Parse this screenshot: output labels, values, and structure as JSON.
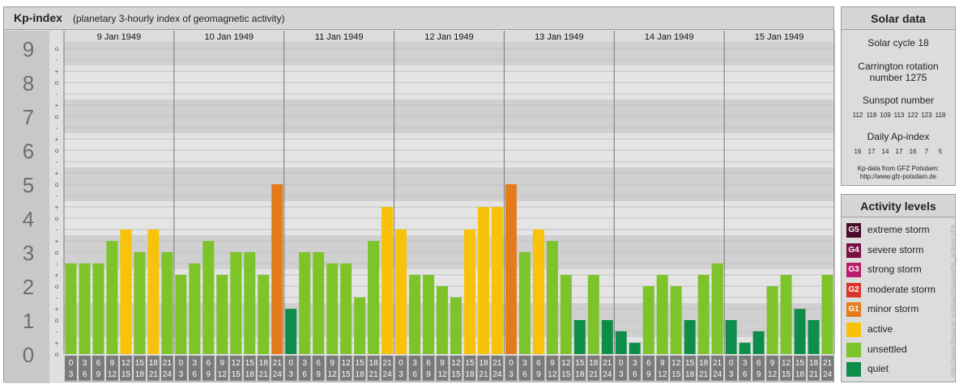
{
  "header": {
    "title": "Kp-index",
    "subtitle": "(planetary 3-hourly index of geomagnetic activity)"
  },
  "chart_data": {
    "type": "bar",
    "y_levels": [
      "0",
      "1",
      "2",
      "3",
      "4",
      "5",
      "6",
      "7",
      "8",
      "9"
    ],
    "subticks": [
      "-",
      "o",
      "+"
    ],
    "ylim": [
      0,
      9.33
    ],
    "days": [
      "9 Jan 1949",
      "10 Jan 1949",
      "11 Jan 1949",
      "12 Jan 1949",
      "13 Jan 1949",
      "14 Jan 1949",
      "15 Jan 1949"
    ],
    "interval_starts": [
      "0",
      "3",
      "6",
      "9",
      "12",
      "15",
      "18",
      "21"
    ],
    "interval_ends": [
      "3",
      "6",
      "9",
      "12",
      "15",
      "18",
      "21",
      "24"
    ],
    "values": [
      [
        2.67,
        2.67,
        2.67,
        3.33,
        3.67,
        3.0,
        3.67,
        3.0
      ],
      [
        2.33,
        2.67,
        3.33,
        2.33,
        3.0,
        3.0,
        2.33,
        5.0
      ],
      [
        1.33,
        3.0,
        3.0,
        2.67,
        2.67,
        1.67,
        3.33,
        4.33
      ],
      [
        3.67,
        2.33,
        2.33,
        2.0,
        1.67,
        3.67,
        4.33,
        4.33
      ],
      [
        5.0,
        3.0,
        3.67,
        3.33,
        2.33,
        1.0,
        2.33,
        1.0
      ],
      [
        0.67,
        0.33,
        2.0,
        2.33,
        2.0,
        1.0,
        2.33,
        2.67
      ],
      [
        1.0,
        0.33,
        0.67,
        2.0,
        2.33,
        1.33,
        1.0,
        2.33
      ]
    ],
    "bar_colors": {
      "quiet": "#0e8c4a",
      "unsettled": "#7cc42a",
      "active": "#f8c20a",
      "minor_storm": "#e37b1b"
    }
  },
  "solar": {
    "title": "Solar data",
    "cycle": "Solar cycle 18",
    "carrington_1": "Carrington rotation",
    "carrington_2": "number 1275",
    "sunspot_title": "Sunspot number",
    "sunspots": [
      "112",
      "118",
      "109",
      "113",
      "122",
      "123",
      "118"
    ],
    "ap_title": "Daily Ap-index",
    "ap": [
      "16",
      "17",
      "14",
      "17",
      "16",
      "7",
      "5"
    ],
    "source_1": "Kp-data from GFZ Potsdam:",
    "source_2": "http://www.gfz-potsdam.de"
  },
  "activity": {
    "title": "Activity levels",
    "items": [
      {
        "code": "G5",
        "label": "extreme storm",
        "color": "#4a0a2a"
      },
      {
        "code": "G4",
        "label": "severe storm",
        "color": "#7a0f45"
      },
      {
        "code": "G3",
        "label": "strong storm",
        "color": "#b81c6c"
      },
      {
        "code": "G2",
        "label": "moderate storm",
        "color": "#d9352b"
      },
      {
        "code": "G1",
        "label": "minor storm",
        "color": "#e37b1b"
      },
      {
        "code": "",
        "label": "active",
        "color": "#f8c20a"
      },
      {
        "code": "",
        "label": "unsettled",
        "color": "#7cc42a"
      },
      {
        "code": "",
        "label": "quiet",
        "color": "#0e8c4a"
      }
    ]
  },
  "credit": "http://www.theusner-eulebach/aurora/hp_archive.php"
}
